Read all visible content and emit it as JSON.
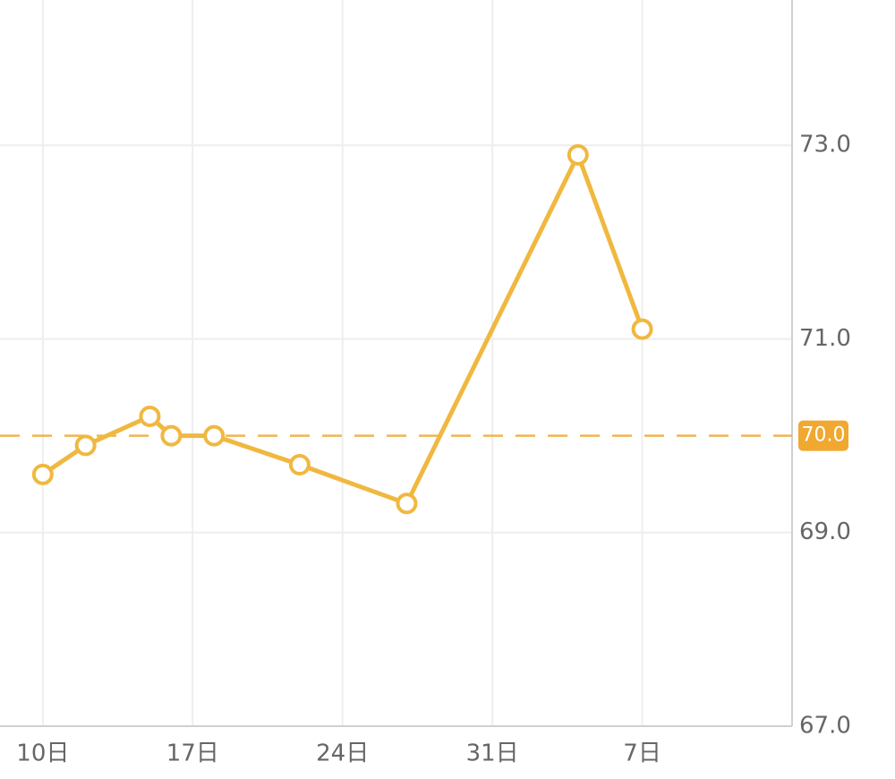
{
  "chart_data": {
    "type": "line",
    "x": [
      10,
      12,
      15,
      16,
      18,
      22,
      27,
      35,
      38
    ],
    "series": [
      {
        "color": "#f0b840",
        "values": [
          69.6,
          69.9,
          70.2,
          70.0,
          70.0,
          69.7,
          69.3,
          72.9,
          71.1
        ]
      }
    ],
    "xlim": [
      8,
      45
    ],
    "xticks": [
      {
        "value": 10,
        "label": "10日"
      },
      {
        "value": 17,
        "label": "17日"
      },
      {
        "value": 24,
        "label": "24日"
      },
      {
        "value": 31,
        "label": "31日"
      },
      {
        "value": 38,
        "label": "7日"
      }
    ],
    "ylim": [
      67,
      74.5
    ],
    "yticks": [
      {
        "value": 67,
        "label": "67.0"
      },
      {
        "value": 69,
        "label": "69.0"
      },
      {
        "value": 71,
        "label": "71.0"
      },
      {
        "value": 73,
        "label": "73.0"
      }
    ],
    "reference_line": {
      "value": 70,
      "label": "70.0",
      "color": "#f0a830"
    },
    "grid": true
  }
}
